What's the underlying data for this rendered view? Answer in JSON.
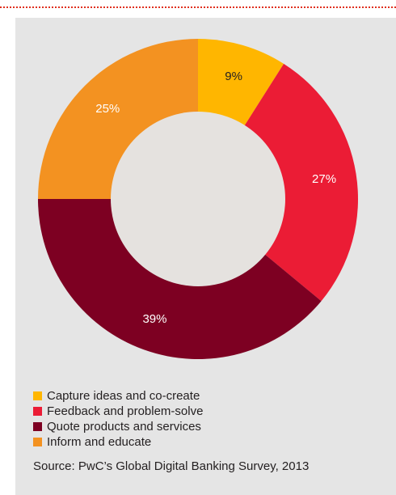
{
  "chart_data": {
    "type": "pie",
    "donut": true,
    "categories": [
      "Capture ideas and co-create",
      "Feedback and problem-solve",
      "Quote products and services",
      "Inform and educate"
    ],
    "values": [
      9,
      27,
      39,
      25
    ],
    "labels": [
      "9%",
      "27%",
      "39%",
      "25%"
    ],
    "colors": [
      "#ffb600",
      "#eb1c35",
      "#7d0022",
      "#f39221"
    ],
    "label_colors": [
      "#231f20",
      "#ffffff",
      "#ffffff",
      "#ffffff"
    ],
    "start_angle_deg": 0,
    "direction": "clockwise",
    "hole_color": "#e5e2df",
    "legend_position": "bottom-left",
    "title": "",
    "source": "Source: PwC’s Global Digital Banking Survey, 2013"
  },
  "page": {
    "background": "#e5e5e5",
    "rule_color": "#e0301e"
  }
}
